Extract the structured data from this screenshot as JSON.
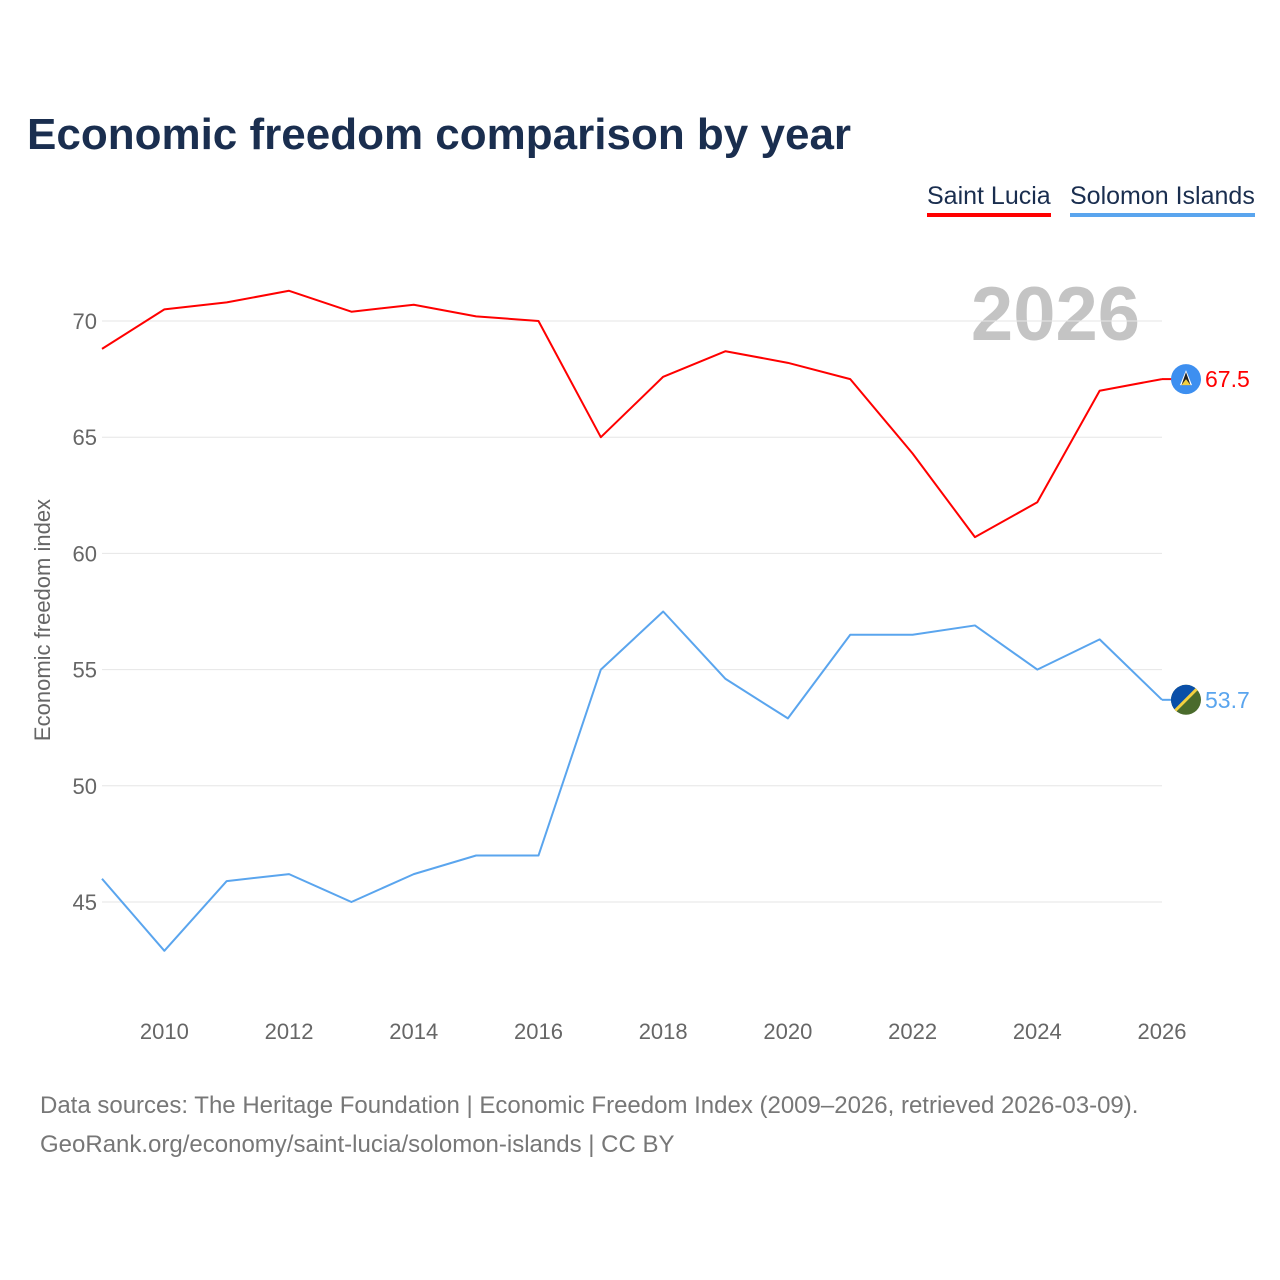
{
  "chart_data": {
    "type": "line",
    "title": "Economic freedom comparison by year",
    "ylabel": "Economic freedom index",
    "xlabel": "",
    "year_watermark": "2026",
    "ylim": [
      41,
      73
    ],
    "xlim": [
      2009,
      2026
    ],
    "yticks": [
      45,
      50,
      55,
      60,
      65,
      70
    ],
    "xticks": [
      2010,
      2012,
      2014,
      2016,
      2018,
      2020,
      2022,
      2024,
      2026
    ],
    "grid": true,
    "legend_placement": "top-right",
    "x": [
      2009,
      2010,
      2011,
      2012,
      2013,
      2014,
      2015,
      2016,
      2017,
      2018,
      2019,
      2020,
      2021,
      2022,
      2023,
      2024,
      2025,
      2026
    ],
    "series": [
      {
        "name": "Saint Lucia",
        "color": "#ff0000",
        "flag": "saint-lucia-flag",
        "end_label": "67.5",
        "values": [
          68.8,
          70.5,
          70.8,
          71.3,
          70.4,
          70.7,
          70.2,
          70.0,
          65.0,
          67.6,
          68.7,
          68.2,
          67.5,
          64.3,
          60.7,
          62.2,
          67.0,
          67.5
        ]
      },
      {
        "name": "Solomon Islands",
        "color": "#5aa5ee",
        "flag": "solomon-islands-flag",
        "end_label": "53.7",
        "values": [
          46.0,
          42.9,
          45.9,
          46.2,
          45.0,
          46.2,
          47.0,
          47.0,
          55.0,
          57.5,
          54.6,
          52.9,
          56.5,
          56.5,
          56.9,
          55.0,
          56.3,
          53.7
        ]
      }
    ]
  },
  "footer": {
    "source_line": "Data sources: The Heritage Foundation | Economic Freedom Index (2009–2026, retrieved 2026-03-09).",
    "link": "GeoRank.org/economy/saint-lucia/solomon-islands",
    "license": " | CC BY"
  }
}
